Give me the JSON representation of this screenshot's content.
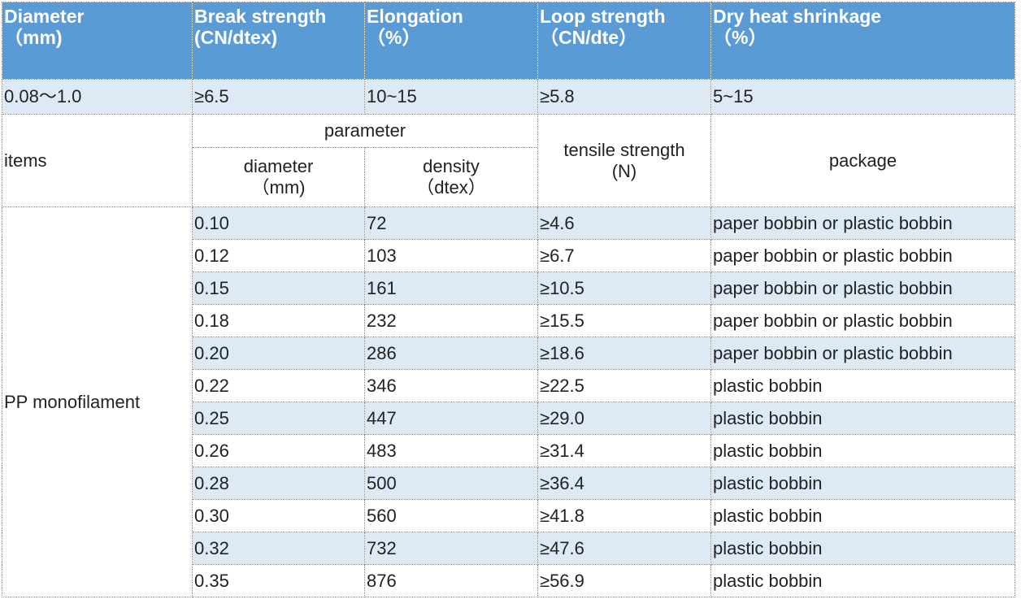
{
  "header": {
    "diameter": [
      "Diameter",
      "（mm)"
    ],
    "break_strength": [
      "Break strength",
      "(CN/dtex)"
    ],
    "elongation": [
      "Elongation",
      "（%）"
    ],
    "loop_strength": [
      "Loop strength",
      "（CN/dte）"
    ],
    "shrinkage": [
      "Dry heat shrinkage",
      "（%）"
    ]
  },
  "spec": [
    "0.08～1.0",
    "≥6.5",
    "10~15",
    "≥5.8",
    "5~15"
  ],
  "sub": {
    "items": "items",
    "parameter": "parameter",
    "diameter": [
      "diameter",
      "（mm)"
    ],
    "density": [
      "density",
      "（dtex）"
    ],
    "tensile": [
      "tensile strength",
      "(N)"
    ],
    "package": "package"
  },
  "product": "PP monofilament",
  "rows": [
    [
      "0.10",
      "72",
      "≥4.6",
      "paper bobbin or plastic bobbin"
    ],
    [
      "0.12",
      "103",
      "≥6.7",
      "paper bobbin or plastic bobbin"
    ],
    [
      "0.15",
      "161",
      "≥10.5",
      "paper bobbin or plastic bobbin"
    ],
    [
      "0.18",
      "232",
      "≥15.5",
      "paper bobbin or plastic bobbin"
    ],
    [
      "0.20",
      "286",
      "≥18.6",
      "paper bobbin or plastic bobbin"
    ],
    [
      "0.22",
      "346",
      "≥22.5",
      "plastic bobbin"
    ],
    [
      "0.25",
      "447",
      "≥29.0",
      "plastic bobbin"
    ],
    [
      "0.26",
      "483",
      "≥31.4",
      "plastic bobbin"
    ],
    [
      "0.28",
      "500",
      "≥36.4",
      "plastic bobbin"
    ],
    [
      "0.30",
      "560",
      "≥41.8",
      "plastic bobbin"
    ],
    [
      "0.32",
      "732",
      "≥47.6",
      "plastic bobbin"
    ],
    [
      "0.35",
      "876",
      "≥56.9",
      "plastic bobbin"
    ]
  ]
}
